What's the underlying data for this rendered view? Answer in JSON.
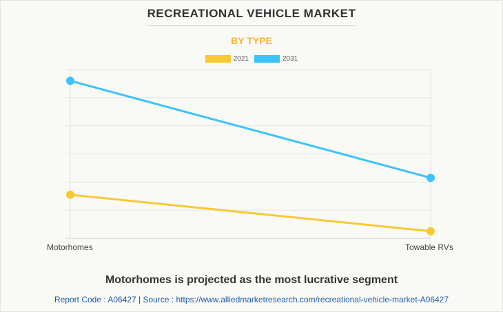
{
  "header": {
    "title": "RECREATIONAL VEHICLE MARKET",
    "subtitle": "BY TYPE"
  },
  "colors": {
    "series_2021": "#f7c933",
    "series_2031": "#3cc3fb",
    "subtitle": "#f5b42a"
  },
  "chart_data": {
    "type": "line",
    "categories": [
      "Motorhomes",
      "Towable RVs"
    ],
    "series": [
      {
        "name": "2021",
        "values": [
          31,
          5
        ],
        "color": "#f7c933"
      },
      {
        "name": "2031",
        "values": [
          112,
          43
        ],
        "color": "#3cc3fb"
      }
    ],
    "ylim": [
      0,
      120
    ],
    "grid": true,
    "y_tick_labels_shown": false,
    "legend_position": "top-center"
  },
  "footer": {
    "headline": "Motorhomes is projected as the most lucrative segment",
    "source": "Report Code : A06427  |  Source : https://www.alliedmarketresearch.com/recreational-vehicle-market-A06427"
  }
}
